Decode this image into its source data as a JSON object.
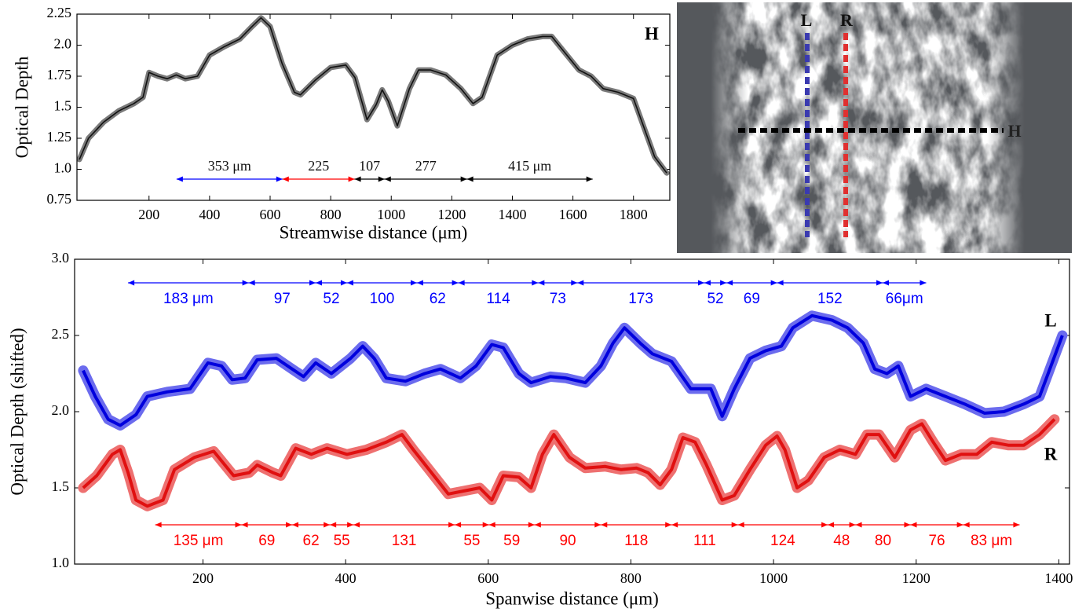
{
  "chart_data": [
    {
      "type": "line",
      "xlabel": "Streamwise distance (μm)",
      "ylabel": "Optical Depth",
      "xlim": [
        -38,
        1920
      ],
      "ylim": [
        0.75,
        2.25
      ],
      "xticks": [
        200,
        400,
        600,
        800,
        1000,
        1200,
        1400,
        1600,
        1800
      ],
      "yticks": [
        0.75,
        {
          "value": 1,
          "label": "1.0"
        },
        1.25,
        1.5,
        1.75,
        {
          "value": 2,
          "label": "2.0"
        },
        2.25
      ],
      "series": [
        {
          "name": "H",
          "color": "#111111",
          "band_color": "#7a7a7a",
          "x": [
            -30,
            0,
            50,
            100,
            150,
            180,
            200,
            230,
            260,
            290,
            320,
            360,
            400,
            450,
            500,
            540,
            570,
            600,
            640,
            680,
            700,
            750,
            800,
            850,
            880,
            920,
            950,
            970,
            990,
            1020,
            1060,
            1090,
            1130,
            1180,
            1230,
            1270,
            1300,
            1350,
            1400,
            1450,
            1500,
            1530,
            1570,
            1620,
            1660,
            1700,
            1750,
            1800,
            1840,
            1870,
            1910
          ],
          "values": [
            1.08,
            1.25,
            1.38,
            1.47,
            1.53,
            1.58,
            1.78,
            1.75,
            1.73,
            1.76,
            1.73,
            1.75,
            1.92,
            1.99,
            2.05,
            2.15,
            2.22,
            2.15,
            1.85,
            1.62,
            1.6,
            1.72,
            1.82,
            1.84,
            1.74,
            1.4,
            1.52,
            1.64,
            1.55,
            1.35,
            1.65,
            1.8,
            1.8,
            1.76,
            1.65,
            1.53,
            1.58,
            1.92,
            2.0,
            2.05,
            2.07,
            2.07,
            1.95,
            1.8,
            1.75,
            1.65,
            1.62,
            1.57,
            1.3,
            1.1,
            0.97
          ]
        }
      ],
      "spans": [
        {
          "edges": [
            291,
            641,
            879,
            978,
            1250,
            1665
          ],
          "labels": [
            "353 μm",
            "225",
            "107",
            "277",
            "415 μm"
          ],
          "colors": [
            "#0000ff",
            "#ff0000",
            "#000000",
            "#000000",
            "#000000"
          ]
        }
      ]
    },
    {
      "type": "line",
      "xlabel": "Spanwise distance (μm)",
      "ylabel": "Optical Depth (shifted)",
      "xlim": [
        20,
        1415
      ],
      "ylim": [
        1,
        3
      ],
      "xticks": [
        200,
        400,
        600,
        800,
        1000,
        1200,
        1400
      ],
      "yticks": [
        {
          "value": 1,
          "label": "1.0"
        },
        1.5,
        {
          "value": 2,
          "label": "2.0"
        },
        2.5,
        {
          "value": 3,
          "label": "3.0"
        }
      ],
      "series": [
        {
          "name": "L",
          "color": "#0000dd",
          "band_color": "#6b6bee",
          "x": [
            32,
            49,
            67,
            84,
            106,
            122,
            150,
            182,
            207,
            226,
            241,
            259,
            276,
            303,
            325,
            341,
            358,
            380,
            407,
            424,
            440,
            457,
            484,
            511,
            533,
            561,
            583,
            605,
            621,
            643,
            660,
            687,
            709,
            736,
            758,
            775,
            791,
            813,
            830,
            857,
            884,
            912,
            928,
            945,
            967,
            989,
            1011,
            1027,
            1054,
            1082,
            1104,
            1126,
            1142,
            1159,
            1175,
            1192,
            1214,
            1241,
            1268,
            1296,
            1323,
            1351,
            1373,
            1389,
            1405
          ],
          "values": [
            2.27,
            2.1,
            1.95,
            1.91,
            1.98,
            2.1,
            2.13,
            2.15,
            2.32,
            2.3,
            2.21,
            2.22,
            2.34,
            2.35,
            2.28,
            2.23,
            2.32,
            2.25,
            2.35,
            2.43,
            2.35,
            2.22,
            2.2,
            2.25,
            2.28,
            2.22,
            2.3,
            2.44,
            2.42,
            2.25,
            2.19,
            2.23,
            2.22,
            2.19,
            2.3,
            2.45,
            2.55,
            2.45,
            2.38,
            2.33,
            2.15,
            2.15,
            1.97,
            2.15,
            2.35,
            2.4,
            2.43,
            2.55,
            2.63,
            2.6,
            2.55,
            2.45,
            2.28,
            2.25,
            2.3,
            2.1,
            2.15,
            2.1,
            2.05,
            1.99,
            2.0,
            2.05,
            2.1,
            2.3,
            2.5
          ]
        },
        {
          "name": "R",
          "color": "#e01010",
          "band_color": "#ee7070",
          "x": [
            32,
            51,
            73,
            84,
            95,
            106,
            122,
            144,
            160,
            188,
            215,
            243,
            265,
            276,
            298,
            309,
            330,
            352,
            374,
            402,
            429,
            457,
            479,
            495,
            517,
            544,
            566,
            588,
            605,
            621,
            643,
            660,
            676,
            692,
            714,
            736,
            764,
            786,
            808,
            824,
            841,
            857,
            873,
            890,
            906,
            928,
            945,
            967,
            989,
            1005,
            1016,
            1033,
            1049,
            1071,
            1093,
            1115,
            1131,
            1148,
            1170,
            1192,
            1208,
            1224,
            1241,
            1263,
            1285,
            1306,
            1329,
            1351,
            1373,
            1394
          ],
          "values": [
            1.5,
            1.58,
            1.72,
            1.75,
            1.6,
            1.42,
            1.38,
            1.42,
            1.62,
            1.7,
            1.74,
            1.58,
            1.6,
            1.65,
            1.6,
            1.58,
            1.76,
            1.72,
            1.76,
            1.72,
            1.75,
            1.8,
            1.85,
            1.75,
            1.62,
            1.46,
            1.48,
            1.5,
            1.42,
            1.58,
            1.57,
            1.5,
            1.72,
            1.85,
            1.7,
            1.63,
            1.64,
            1.62,
            1.63,
            1.6,
            1.52,
            1.62,
            1.83,
            1.8,
            1.65,
            1.42,
            1.45,
            1.62,
            1.78,
            1.84,
            1.75,
            1.5,
            1.55,
            1.7,
            1.75,
            1.72,
            1.85,
            1.85,
            1.7,
            1.88,
            1.92,
            1.8,
            1.68,
            1.72,
            1.72,
            1.8,
            1.78,
            1.78,
            1.85,
            1.95
          ]
        }
      ],
      "spans": [
        {
          "color": "#0000ff",
          "edges": [
            95,
            264,
            358,
            402,
            500,
            558,
            670,
            725,
            903,
            934,
            1005,
            1153,
            1214
          ],
          "labels": [
            "183 μm",
            "97",
            "52",
            "100",
            "62",
            "114",
            "73",
            "173",
            "52",
            "69",
            "152",
            "66μm"
          ]
        },
        {
          "color": "#ff0000",
          "edges": [
            133,
            254,
            325,
            378,
            411,
            553,
            601,
            665,
            758,
            857,
            950,
            1076,
            1115,
            1192,
            1266,
            1345
          ],
          "labels": [
            "135 μm",
            "69",
            "62",
            "55",
            "131",
            "55",
            "59",
            "90",
            "118",
            "111",
            "124",
            "48",
            "80",
            "76",
            "83 μm"
          ]
        }
      ]
    }
  ],
  "image_labels": [
    "L",
    "R",
    "H"
  ]
}
